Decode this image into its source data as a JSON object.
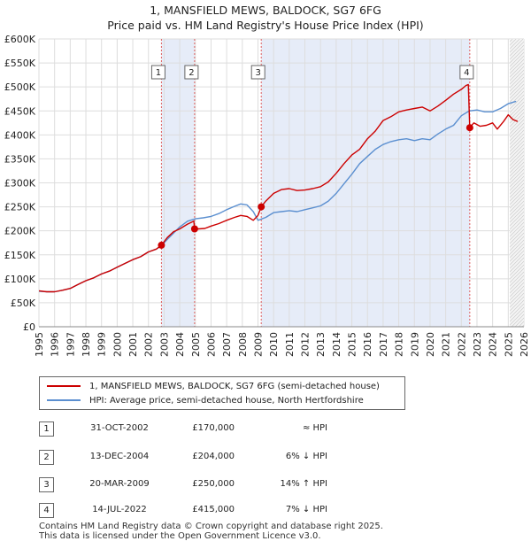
{
  "chart_data": {
    "type": "line",
    "title": "1, MANSFIELD MEWS, BALDOCK, SG7 6FG",
    "subtitle": "Price paid vs. HM Land Registry's House Price Index (HPI)",
    "xlabel": "",
    "ylabel": "",
    "xlim": [
      1995,
      2026
    ],
    "ylim": [
      0,
      600000
    ],
    "x_ticks": [
      "1995",
      "1996",
      "1997",
      "1998",
      "1999",
      "2000",
      "2001",
      "2002",
      "2003",
      "2004",
      "2005",
      "2006",
      "2007",
      "2008",
      "2009",
      "2010",
      "2011",
      "2012",
      "2013",
      "2014",
      "2015",
      "2016",
      "2017",
      "2018",
      "2019",
      "2020",
      "2021",
      "2022",
      "2023",
      "2024",
      "2025",
      "2026"
    ],
    "y_ticks": [
      {
        "value": 0,
        "label": "£0"
      },
      {
        "value": 50000,
        "label": "£50K"
      },
      {
        "value": 100000,
        "label": "£100K"
      },
      {
        "value": 150000,
        "label": "£150K"
      },
      {
        "value": 200000,
        "label": "£200K"
      },
      {
        "value": 250000,
        "label": "£250K"
      },
      {
        "value": 300000,
        "label": "£300K"
      },
      {
        "value": 350000,
        "label": "£350K"
      },
      {
        "value": 400000,
        "label": "£400K"
      },
      {
        "value": 450000,
        "label": "£450K"
      },
      {
        "value": 500000,
        "label": "£500K"
      },
      {
        "value": 550000,
        "label": "£550K"
      },
      {
        "value": 600000,
        "label": "£600K"
      }
    ],
    "grid": true,
    "shaded_periods": [
      [
        2002.83,
        2004.95
      ],
      [
        2009.21,
        2022.54
      ]
    ],
    "forecast_from": 2025.1,
    "series": [
      {
        "name": "1, MANSFIELD MEWS, BALDOCK, SG7 6FG (semi-detached house)",
        "color": "#cc0000",
        "x": [
          1995.0,
          1995.5,
          1996.0,
          1996.5,
          1997.0,
          1997.5,
          1998.0,
          1998.5,
          1999.0,
          1999.5,
          2000.0,
          2000.5,
          2001.0,
          2001.5,
          2002.0,
          2002.5,
          2002.83,
          2003.2,
          2003.6,
          2004.0,
          2004.5,
          2004.9,
          2004.95,
          2005.2,
          2005.6,
          2006.0,
          2006.5,
          2007.0,
          2007.5,
          2007.9,
          2008.3,
          2008.7,
          2009.0,
          2009.21,
          2009.5,
          2010.0,
          2010.5,
          2011.0,
          2011.5,
          2012.0,
          2012.5,
          2013.0,
          2013.5,
          2014.0,
          2014.5,
          2015.0,
          2015.5,
          2016.0,
          2016.5,
          2017.0,
          2017.5,
          2018.0,
          2018.5,
          2019.0,
          2019.5,
          2020.0,
          2020.5,
          2021.0,
          2021.5,
          2022.0,
          2022.3,
          2022.45,
          2022.54,
          2022.8,
          2023.2,
          2023.6,
          2024.0,
          2024.3,
          2024.7,
          2025.0,
          2025.3,
          2025.6
        ],
        "y": [
          75000,
          73000,
          73000,
          76000,
          80000,
          88000,
          96000,
          102000,
          110000,
          116000,
          124000,
          132000,
          140000,
          146000,
          156000,
          162000,
          170000,
          186000,
          198000,
          204000,
          214000,
          220000,
          204000,
          204000,
          205000,
          210000,
          215000,
          222000,
          228000,
          232000,
          230000,
          222000,
          232000,
          250000,
          262000,
          278000,
          286000,
          288000,
          284000,
          285000,
          288000,
          292000,
          302000,
          320000,
          340000,
          358000,
          370000,
          392000,
          408000,
          430000,
          438000,
          448000,
          452000,
          455000,
          458000,
          450000,
          460000,
          472000,
          485000,
          495000,
          503000,
          505000,
          415000,
          425000,
          418000,
          420000,
          425000,
          412000,
          428000,
          442000,
          432000,
          428000
        ]
      },
      {
        "name": "HPI: Average price, semi-detached house, North Hertfordshire",
        "color": "#5b8fd0",
        "x": [
          1995.0,
          1995.5,
          1996.0,
          1996.5,
          1997.0,
          1997.5,
          1998.0,
          1998.5,
          1999.0,
          1999.5,
          2000.0,
          2000.5,
          2001.0,
          2001.5,
          2002.0,
          2002.5,
          2002.83,
          2003.2,
          2003.6,
          2004.0,
          2004.5,
          2005.0,
          2005.5,
          2006.0,
          2006.5,
          2007.0,
          2007.5,
          2007.9,
          2008.3,
          2008.7,
          2009.0,
          2009.5,
          2010.0,
          2010.5,
          2011.0,
          2011.5,
          2012.0,
          2012.5,
          2013.0,
          2013.5,
          2014.0,
          2014.5,
          2015.0,
          2015.5,
          2016.0,
          2016.5,
          2017.0,
          2017.5,
          2018.0,
          2018.5,
          2019.0,
          2019.5,
          2020.0,
          2020.5,
          2021.0,
          2021.5,
          2022.0,
          2022.5,
          2023.0,
          2023.5,
          2024.0,
          2024.5,
          2025.0,
          2025.5
        ],
        "y": [
          74000,
          73000,
          73000,
          76000,
          80000,
          88000,
          96000,
          102000,
          110000,
          116000,
          124000,
          132000,
          140000,
          146000,
          156000,
          162000,
          169000,
          182000,
          195000,
          208000,
          220000,
          225000,
          227000,
          230000,
          236000,
          244000,
          251000,
          256000,
          254000,
          240000,
          222000,
          228000,
          238000,
          240000,
          242000,
          240000,
          244000,
          248000,
          252000,
          262000,
          278000,
          298000,
          318000,
          340000,
          355000,
          370000,
          380000,
          386000,
          390000,
          392000,
          388000,
          392000,
          390000,
          402000,
          412000,
          420000,
          440000,
          450000,
          452000,
          448000,
          448000,
          455000,
          465000,
          470000
        ]
      }
    ],
    "sale_markers": [
      {
        "label": "1",
        "x": 2002.83,
        "y": 170000
      },
      {
        "label": "2",
        "x": 2004.95,
        "y": 204000
      },
      {
        "label": "3",
        "x": 2009.21,
        "y": 250000
      },
      {
        "label": "4",
        "x": 2022.54,
        "y": 415000
      }
    ]
  },
  "title": "1, MANSFIELD MEWS, BALDOCK, SG7 6FG",
  "subtitle": "Price paid vs. HM Land Registry's House Price Index (HPI)",
  "legend": {
    "property": "1, MANSFIELD MEWS, BALDOCK, SG7 6FG (semi-detached house)",
    "hpi": "HPI: Average price, semi-detached house, North Hertfordshire",
    "property_color": "#cc0000",
    "hpi_color": "#5b8fd0"
  },
  "transactions": [
    {
      "num": "1",
      "date": "31-OCT-2002",
      "price": "£170,000",
      "hpi": "≈ HPI"
    },
    {
      "num": "2",
      "date": "13-DEC-2004",
      "price": "£204,000",
      "hpi": "6% ↓ HPI"
    },
    {
      "num": "3",
      "date": "20-MAR-2009",
      "price": "£250,000",
      "hpi": "14% ↑ HPI"
    },
    {
      "num": "4",
      "date": "14-JUL-2022",
      "price": "£415,000",
      "hpi": "7% ↓ HPI"
    }
  ],
  "footer": {
    "line1": "Contains HM Land Registry data © Crown copyright and database right 2025.",
    "line2": "This data is licensed under the Open Government Licence v3.0."
  }
}
